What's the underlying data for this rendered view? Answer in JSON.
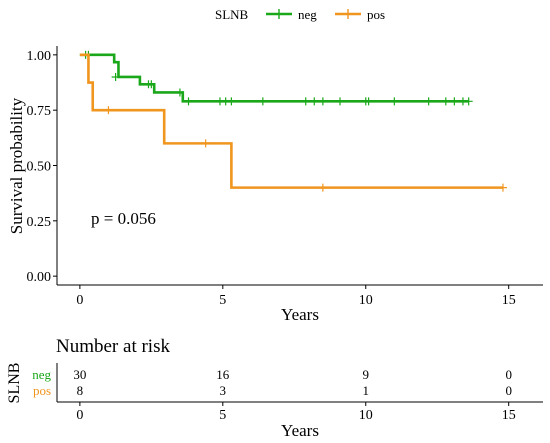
{
  "chart_data": [
    {
      "type": "line",
      "subtype": "kaplan-meier",
      "legend_title": "SLNB",
      "legend_position": "top",
      "xlabel": "Years",
      "ylabel": "Survival probability",
      "xlim": [
        -0.8,
        16.2
      ],
      "ylim": [
        -0.04,
        1.04
      ],
      "xticks": [
        0,
        5,
        10,
        15
      ],
      "yticks": [
        0.0,
        0.25,
        0.5,
        0.75,
        1.0
      ],
      "ytick_labels": [
        "0.00",
        "0.25",
        "0.50",
        "0.75",
        "1.00"
      ],
      "annotation": "p = 0.056",
      "grid": false,
      "series": [
        {
          "name": "neg",
          "color": "#1aa81a",
          "steps": [
            [
              0,
              1.0
            ],
            [
              1.2,
              0.967
            ],
            [
              1.35,
              0.9
            ],
            [
              2.1,
              0.867
            ],
            [
              2.6,
              0.83
            ],
            [
              3.6,
              0.79
            ],
            [
              13.6,
              0.79
            ]
          ],
          "censor_x": [
            0.2,
            0.3,
            1.25,
            2.4,
            2.5,
            3.5,
            3.8,
            4.9,
            5.1,
            5.3,
            6.4,
            7.9,
            8.2,
            8.5,
            9.1,
            10.0,
            10.1,
            11.0,
            12.2,
            12.8,
            13.1,
            13.4,
            13.6
          ],
          "censor_y": [
            1.0,
            1.0,
            0.9,
            0.867,
            0.867,
            0.83,
            0.79,
            0.79,
            0.79,
            0.79,
            0.79,
            0.79,
            0.79,
            0.79,
            0.79,
            0.79,
            0.79,
            0.79,
            0.79,
            0.79,
            0.79,
            0.79,
            0.79
          ]
        },
        {
          "name": "pos",
          "color": "#f0951e",
          "steps": [
            [
              0,
              1.0
            ],
            [
              0.3,
              0.875
            ],
            [
              0.45,
              0.75
            ],
            [
              2.95,
              0.6
            ],
            [
              5.3,
              0.4
            ],
            [
              14.8,
              0.4
            ]
          ],
          "censor_x": [
            1.0,
            4.4,
            8.5,
            14.8
          ],
          "censor_y": [
            0.75,
            0.6,
            0.4,
            0.4
          ]
        }
      ]
    },
    {
      "type": "table",
      "title": "Number at risk",
      "ylabel": "SLNB",
      "xlabel": "Years",
      "xticks": [
        0,
        5,
        10,
        15
      ],
      "rows": [
        {
          "name": "neg",
          "color": "#1aa81a",
          "values": [
            "30",
            "16",
            "9",
            "0"
          ]
        },
        {
          "name": "pos",
          "color": "#f0951e",
          "values": [
            "8",
            "3",
            "1",
            "0"
          ]
        }
      ]
    }
  ]
}
